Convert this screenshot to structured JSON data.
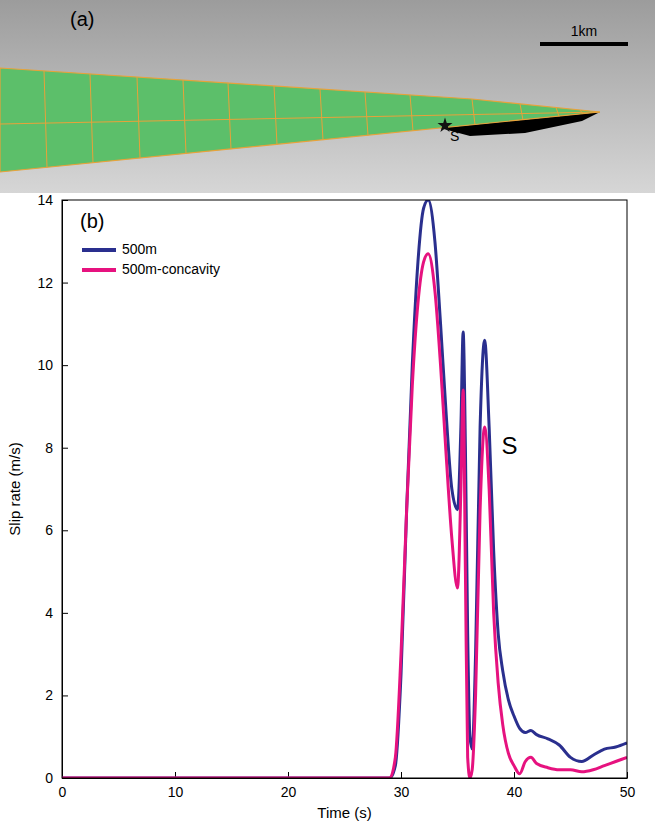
{
  "diagram": {
    "panel_label": "(a)",
    "scale_bar_label": "1km",
    "station_label": "S"
  },
  "chart_data": {
    "type": "line",
    "panel_label": "(b)",
    "x_label": "Time (s)",
    "y_label": "Slip rate (m/s)",
    "x": [
      0,
      10,
      20,
      29,
      29.5,
      30,
      30.5,
      31,
      31.5,
      32,
      32.4,
      33,
      33.5,
      34,
      34.5,
      35,
      35.3,
      35.5,
      35.7,
      35.9,
      36.1,
      36.3,
      36.6,
      37,
      37.4,
      37.8,
      38.2,
      38.6,
      39,
      39.5,
      40,
      40.5,
      41,
      41.5,
      42,
      43,
      44,
      45,
      46,
      47,
      48,
      49,
      50
    ],
    "series": [
      {
        "name": "500m",
        "color": "#2a2f8e",
        "values": [
          0,
          0,
          0,
          0,
          0.3,
          2.5,
          6.5,
          10,
          12.5,
          13.8,
          14.0,
          13,
          11,
          8.8,
          7.0,
          6.5,
          8.5,
          10.8,
          8,
          3.5,
          1.0,
          0.7,
          3,
          8.5,
          10.6,
          8.5,
          5.5,
          3.5,
          2.6,
          1.9,
          1.5,
          1.2,
          1.1,
          1.15,
          1.05,
          0.95,
          0.8,
          0.5,
          0.4,
          0.55,
          0.7,
          0.75,
          0.85
        ]
      },
      {
        "name": "500m-concavity",
        "color": "#e6127f",
        "values": [
          0,
          0,
          0,
          0,
          0.5,
          3,
          6.5,
          9.5,
          11.5,
          12.5,
          12.7,
          11.8,
          10,
          7.8,
          5.8,
          4.6,
          7,
          9.4,
          5,
          0.5,
          0,
          0.2,
          2,
          6.5,
          8.5,
          7,
          4,
          2.3,
          1.3,
          0.6,
          0.3,
          0.1,
          0.4,
          0.5,
          0.35,
          0.25,
          0.2,
          0.2,
          0.15,
          0.2,
          0.3,
          0.4,
          0.5
        ]
      }
    ],
    "xlim": [
      0,
      50
    ],
    "xticks": [
      0,
      10,
      20,
      30,
      40,
      50
    ],
    "ylim": [
      0,
      14
    ],
    "yticks": [
      0,
      2,
      4,
      6,
      8,
      10,
      12,
      14
    ],
    "grid": false,
    "legend": "upper left",
    "annotations": [
      {
        "text": "S",
        "x": 38.9,
        "y": 8.0
      }
    ]
  }
}
